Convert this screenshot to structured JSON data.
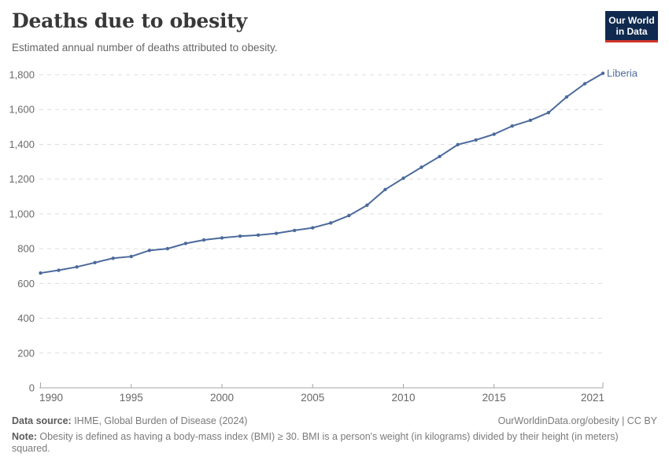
{
  "header": {
    "title": "Deaths due to obesity",
    "subtitle": "Estimated annual number of deaths attributed to obesity.",
    "logo": {
      "line1": "Our World",
      "line2": "in Data"
    }
  },
  "chart_data": {
    "type": "line",
    "title": "Deaths due to obesity",
    "subtitle": "Estimated annual number of deaths attributed to obesity.",
    "x": [
      1990,
      1991,
      1992,
      1993,
      1994,
      1995,
      1996,
      1997,
      1998,
      1999,
      2000,
      2001,
      2002,
      2003,
      2004,
      2005,
      2006,
      2007,
      2008,
      2009,
      2010,
      2011,
      2012,
      2013,
      2014,
      2015,
      2016,
      2017,
      2018,
      2019,
      2020,
      2021
    ],
    "series": [
      {
        "name": "Liberia",
        "color": "#4c6a9c",
        "values": [
          660,
          676,
          695,
          720,
          745,
          755,
          790,
          800,
          830,
          850,
          862,
          872,
          878,
          888,
          905,
          920,
          948,
          990,
          1050,
          1140,
          1205,
          1268,
          1330,
          1398,
          1425,
          1458,
          1505,
          1538,
          1582,
          1672,
          1748,
          1808
        ]
      }
    ],
    "xlabel": "",
    "ylabel": "",
    "xlim": [
      1990,
      2021
    ],
    "ylim": [
      0,
      1800
    ],
    "x_ticks": [
      1990,
      1995,
      2000,
      2005,
      2010,
      2015,
      2021
    ],
    "y_ticks": [
      0,
      200,
      400,
      600,
      800,
      1000,
      1200,
      1400,
      1600,
      1800
    ],
    "y_tick_labels": [
      "0",
      "200",
      "400",
      "600",
      "800",
      "1,000",
      "1,200",
      "1,400",
      "1,600",
      "1,800"
    ],
    "grid": "horizontal-dashed",
    "legend_position": "end-of-line-label",
    "marker": "point-per-year"
  },
  "footer": {
    "datasource_label": "Data source:",
    "datasource_text": " IHME, Global Burden of Disease (2024)",
    "rights": "OurWorldinData.org/obesity | CC BY",
    "note_label": "Note:",
    "note_text": " Obesity is defined as having a body-mass index (BMI) ≥ 30. BMI is a person's weight (in kilograms) divided by their height (in meters) squared."
  },
  "colors": {
    "accent_line": "#4c6a9c",
    "logo_navy": "#0f2a4e",
    "logo_red": "#cf342c",
    "grid": "#dddddd",
    "axis": "#a5a5a5",
    "title_text": "#383838",
    "subtitle_text": "#666666",
    "footer_text": "#7a7a7a"
  }
}
